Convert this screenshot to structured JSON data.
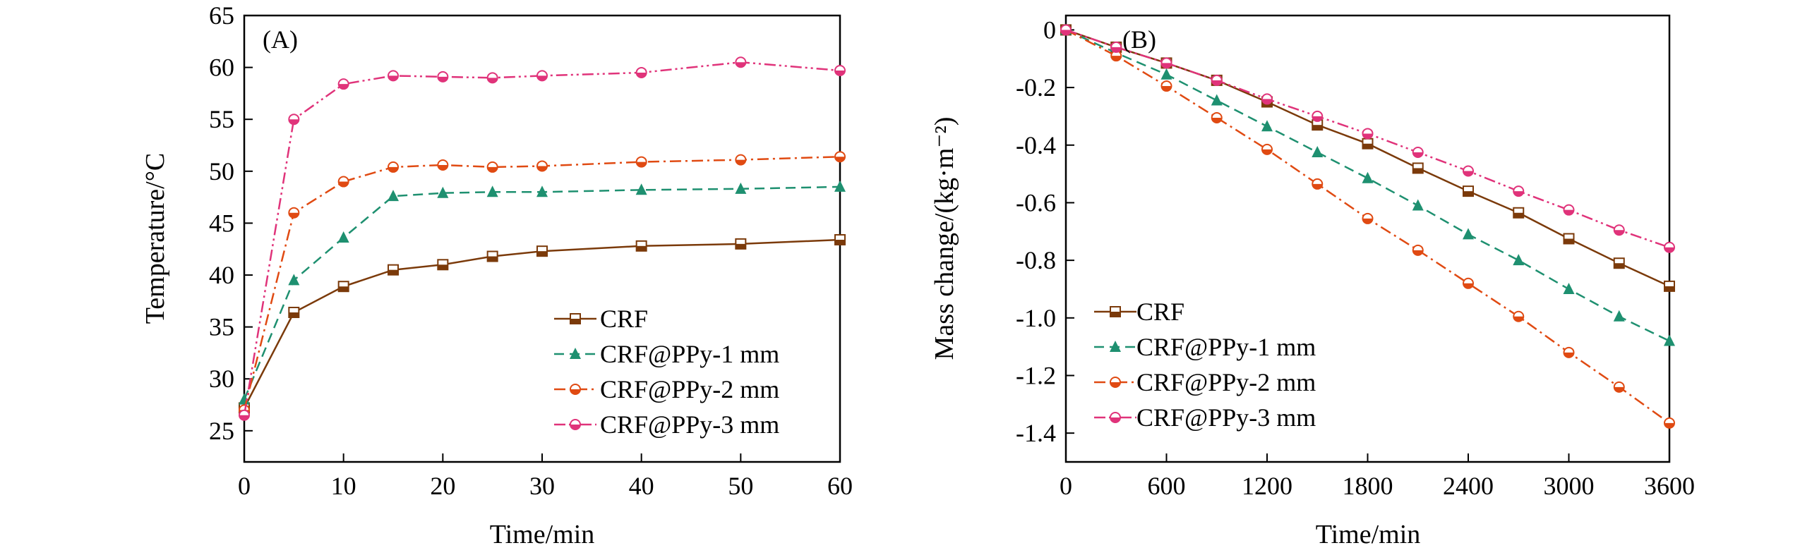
{
  "colors": {
    "CRF": "#7b3a0a",
    "CRF@PPy-1 mm": "#1e9070",
    "CRF@PPy-2 mm": "#e04a12",
    "CRF@PPy-3 mm": "#e0337a",
    "axis": "#000000",
    "background": "#ffffff"
  },
  "chart_data": [
    {
      "panel": "(A)",
      "type": "line",
      "xlabel": "Time/min",
      "ylabel": "Temperature/°C",
      "xlim": [
        0,
        60
      ],
      "ylim": [
        22,
        65
      ],
      "xticks": [
        0,
        10,
        20,
        30,
        40,
        50,
        60
      ],
      "yticks": [
        25,
        30,
        35,
        40,
        45,
        50,
        55,
        60,
        65
      ],
      "legend_position": "bottom-right",
      "series": [
        {
          "name": "CRF",
          "marker": "square",
          "dash": "solid",
          "icon": "square-marker-icon",
          "x": [
            0,
            5,
            10,
            15,
            20,
            25,
            30,
            40,
            50,
            60
          ],
          "y": [
            27.2,
            36.4,
            38.9,
            40.5,
            41.0,
            41.8,
            42.3,
            42.8,
            43.0,
            43.4
          ]
        },
        {
          "name": "CRF@PPy-1 mm",
          "marker": "triangle",
          "dash": "dashed",
          "icon": "triangle-marker-icon",
          "x": [
            0,
            5,
            10,
            15,
            20,
            25,
            30,
            40,
            50,
            60
          ],
          "y": [
            28.0,
            39.5,
            43.6,
            47.6,
            47.9,
            48.0,
            48.0,
            48.2,
            48.3,
            48.5
          ]
        },
        {
          "name": "CRF@PPy-2 mm",
          "marker": "half-circle",
          "dash": "dashdot",
          "icon": "half-circle-marker-icon",
          "x": [
            0,
            5,
            10,
            15,
            20,
            25,
            30,
            40,
            50,
            60
          ],
          "y": [
            27.0,
            46.0,
            49.0,
            50.4,
            50.6,
            50.4,
            50.5,
            50.9,
            51.1,
            51.4
          ]
        },
        {
          "name": "CRF@PPy-3 mm",
          "marker": "half-circle",
          "dash": "dashdotdot",
          "icon": "half-circle-marker-icon",
          "x": [
            0,
            5,
            10,
            15,
            20,
            25,
            30,
            40,
            50,
            60
          ],
          "y": [
            26.5,
            55.0,
            58.4,
            59.2,
            59.1,
            59.0,
            59.2,
            59.5,
            60.5,
            59.7
          ]
        }
      ]
    },
    {
      "panel": "(B)",
      "type": "line",
      "xlabel": "Time/min",
      "ylabel": "Mass change/(kg·m⁻²)",
      "xlim": [
        0,
        3600
      ],
      "ylim": [
        -1.5,
        0.05
      ],
      "xticks": [
        0,
        600,
        1200,
        1800,
        2400,
        3000,
        3600
      ],
      "yticks": [
        0,
        -0.2,
        -0.4,
        -0.6,
        -0.8,
        -1.0,
        -1.2,
        -1.4
      ],
      "ytick_labels": [
        "0",
        "-0.2",
        "-0.4",
        "-0.6",
        "-0.8",
        "-1.0",
        "-1.2",
        "-1.4"
      ],
      "legend_position": "bottom-left",
      "series": [
        {
          "name": "CRF",
          "marker": "square",
          "dash": "solid",
          "icon": "square-marker-icon",
          "x": [
            0,
            300,
            600,
            900,
            1200,
            1500,
            1800,
            2100,
            2400,
            2700,
            3000,
            3300,
            3600
          ],
          "y": [
            0,
            -0.06,
            -0.115,
            -0.175,
            -0.25,
            -0.33,
            -0.395,
            -0.48,
            -0.56,
            -0.635,
            -0.725,
            -0.81,
            -0.89
          ]
        },
        {
          "name": "CRF@PPy-1 mm",
          "marker": "triangle",
          "dash": "dashed",
          "icon": "triangle-marker-icon",
          "x": [
            0,
            300,
            600,
            900,
            1200,
            1500,
            1800,
            2100,
            2400,
            2700,
            3000,
            3300,
            3600
          ],
          "y": [
            0,
            -0.08,
            -0.155,
            -0.245,
            -0.335,
            -0.425,
            -0.515,
            -0.61,
            -0.71,
            -0.8,
            -0.9,
            -0.995,
            -1.08
          ]
        },
        {
          "name": "CRF@PPy-2 mm",
          "marker": "half-circle",
          "dash": "dashdot",
          "icon": "half-circle-marker-icon",
          "x": [
            0,
            300,
            600,
            900,
            1200,
            1500,
            1800,
            2100,
            2400,
            2700,
            3000,
            3300,
            3600
          ],
          "y": [
            0,
            -0.09,
            -0.195,
            -0.305,
            -0.415,
            -0.535,
            -0.655,
            -0.765,
            -0.88,
            -0.995,
            -1.12,
            -1.24,
            -1.365
          ]
        },
        {
          "name": "CRF@PPy-3 mm",
          "marker": "half-circle",
          "dash": "dashdotdot",
          "icon": "half-circle-marker-icon",
          "x": [
            0,
            300,
            600,
            900,
            1200,
            1500,
            1800,
            2100,
            2400,
            2700,
            3000,
            3300,
            3600
          ],
          "y": [
            0,
            -0.06,
            -0.115,
            -0.175,
            -0.24,
            -0.3,
            -0.36,
            -0.425,
            -0.49,
            -0.56,
            -0.625,
            -0.695,
            -0.755
          ]
        }
      ]
    }
  ]
}
